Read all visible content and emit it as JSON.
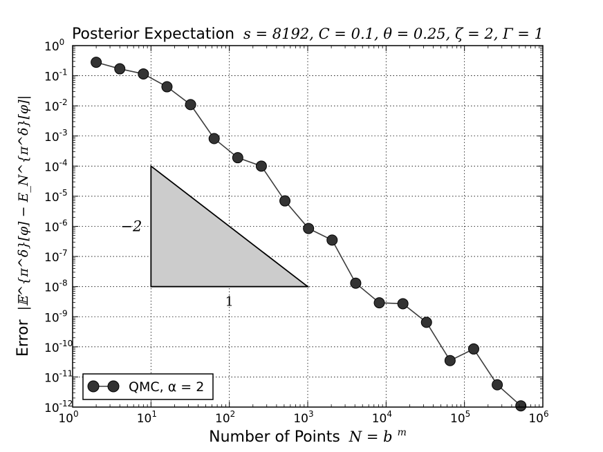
{
  "chart_data": {
    "type": "scatter",
    "title": "Posterior Expectation",
    "title_math": "s = 8192, C = 0.1, θ = 0.25, ζ = 2, Γ = 1",
    "xlabel": "Number of Points",
    "xlabel_math": "N = b",
    "xlabel_math_sup": "m",
    "ylabel": "Error",
    "ylabel_math": "|𝔼^{π^δ}[φ] − E_N^{π^δ}[φ]|",
    "x_scale": "log",
    "y_scale": "log",
    "xlim": [
      1,
      1000000
    ],
    "ylim": [
      1e-12,
      1
    ],
    "x_tick_labels": [
      {
        "base": "10",
        "exp": "0"
      },
      {
        "base": "10",
        "exp": "1"
      },
      {
        "base": "10",
        "exp": "2"
      },
      {
        "base": "10",
        "exp": "3"
      },
      {
        "base": "10",
        "exp": "4"
      },
      {
        "base": "10",
        "exp": "5"
      },
      {
        "base": "10",
        "exp": "6"
      }
    ],
    "y_tick_labels": [
      {
        "base": "10",
        "exp": "0"
      },
      {
        "base": "10",
        "exp": "-1"
      },
      {
        "base": "10",
        "exp": "-2"
      },
      {
        "base": "10",
        "exp": "-3"
      },
      {
        "base": "10",
        "exp": "-4"
      },
      {
        "base": "10",
        "exp": "-5"
      },
      {
        "base": "10",
        "exp": "-6"
      },
      {
        "base": "10",
        "exp": "-7"
      },
      {
        "base": "10",
        "exp": "-8"
      },
      {
        "base": "10",
        "exp": "-9"
      },
      {
        "base": "10",
        "exp": "-10"
      },
      {
        "base": "10",
        "exp": "-11"
      },
      {
        "base": "10",
        "exp": "-12"
      }
    ],
    "grid": true,
    "legend_position": "bottom-left",
    "series": [
      {
        "name": "QMC, α = 2",
        "color": "#333333",
        "line_color": "#3c3c3c",
        "points": [
          {
            "x": 2,
            "y": 0.28
          },
          {
            "x": 4,
            "y": 0.17
          },
          {
            "x": 8,
            "y": 0.115
          },
          {
            "x": 16,
            "y": 0.043
          },
          {
            "x": 32,
            "y": 0.011
          },
          {
            "x": 64,
            "y": 0.00082
          },
          {
            "x": 128,
            "y": 0.00019
          },
          {
            "x": 256,
            "y": 0.0001
          },
          {
            "x": 512,
            "y": 7e-06
          },
          {
            "x": 1024,
            "y": 8.5e-07
          },
          {
            "x": 2048,
            "y": 3.5e-07
          },
          {
            "x": 4096,
            "y": 1.3e-08
          },
          {
            "x": 8192,
            "y": 2.9e-09
          },
          {
            "x": 16384,
            "y": 2.7e-09
          },
          {
            "x": 32768,
            "y": 6.5e-10
          },
          {
            "x": 65536,
            "y": 3.5e-11
          },
          {
            "x": 131072,
            "y": 8.5e-11
          },
          {
            "x": 262144,
            "y": 5.5e-12
          },
          {
            "x": 524288,
            "y": 1.1e-12
          }
        ]
      }
    ],
    "slope_triangle": {
      "vertices": [
        {
          "x": 10,
          "y": 0.0001
        },
        {
          "x": 10,
          "y": 1e-08
        },
        {
          "x": 1000,
          "y": 1e-08
        }
      ],
      "fill": "#cccccc",
      "rise_label": "−2",
      "run_label": "1"
    }
  }
}
